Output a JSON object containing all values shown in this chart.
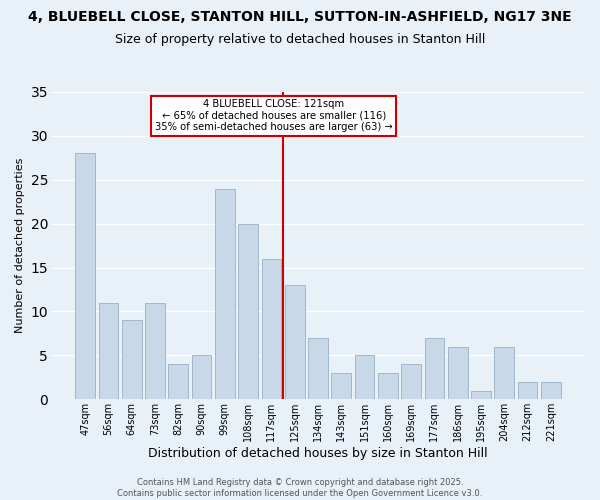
{
  "title": "4, BLUEBELL CLOSE, STANTON HILL, SUTTON-IN-ASHFIELD, NG17 3NE",
  "subtitle": "Size of property relative to detached houses in Stanton Hill",
  "xlabel": "Distribution of detached houses by size in Stanton Hill",
  "ylabel": "Number of detached properties",
  "categories": [
    "47sqm",
    "56sqm",
    "64sqm",
    "73sqm",
    "82sqm",
    "90sqm",
    "99sqm",
    "108sqm",
    "117sqm",
    "125sqm",
    "134sqm",
    "143sqm",
    "151sqm",
    "160sqm",
    "169sqm",
    "177sqm",
    "186sqm",
    "195sqm",
    "204sqm",
    "212sqm",
    "221sqm"
  ],
  "values": [
    28,
    11,
    9,
    11,
    4,
    5,
    24,
    20,
    16,
    13,
    7,
    3,
    5,
    3,
    4,
    7,
    6,
    1,
    6,
    2,
    2
  ],
  "bar_color": "#c8d8e8",
  "bar_edgecolor": "#a0b8cc",
  "vline_index": 8,
  "vline_color": "#cc0000",
  "annotation_text": "4 BLUEBELL CLOSE: 121sqm\n← 65% of detached houses are smaller (116)\n35% of semi-detached houses are larger (63) →",
  "annotation_box_edgecolor": "#cc0000",
  "ylim": [
    0,
    35
  ],
  "yticks": [
    0,
    5,
    10,
    15,
    20,
    25,
    30,
    35
  ],
  "background_color": "#e8f0f8",
  "grid_color": "#ffffff",
  "footer": "Contains HM Land Registry data © Crown copyright and database right 2025.\nContains public sector information licensed under the Open Government Licence v3.0.",
  "title_fontsize": 10,
  "subtitle_fontsize": 9,
  "label_fontsize": 8,
  "tick_fontsize": 7,
  "footer_fontsize": 6
}
